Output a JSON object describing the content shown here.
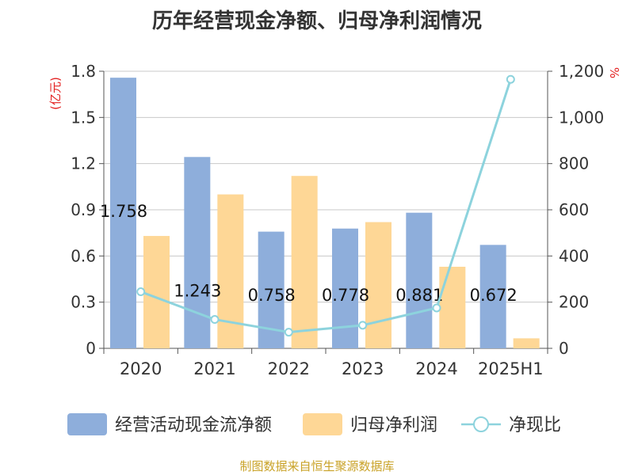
{
  "title": "历年经营现金净额、归母净利润情况",
  "footer": "制图数据来自恒生聚源数据库",
  "colors": {
    "cash": "#8eaedb",
    "profit": "#fed796",
    "ratio": "#8dd3dd",
    "unit": "#e32020"
  },
  "chart_data": {
    "type": "bar",
    "categories": [
      "2020",
      "2021",
      "2022",
      "2023",
      "2024",
      "2025H1"
    ],
    "ylabel_left": "(亿元)",
    "ylabel_right": "%",
    "ylim_left": [
      0,
      1.8
    ],
    "ylim_right": [
      0,
      1200
    ],
    "yticks_left": [
      "0",
      "0.3",
      "0.6",
      "0.9",
      "1.2",
      "1.5",
      "1.8"
    ],
    "yticks_right": [
      "0",
      "200",
      "400",
      "600",
      "800",
      "1,000",
      "1,200"
    ],
    "grid": true,
    "legend": "bottom",
    "series": [
      {
        "name": "经营活动现金流净额",
        "type": "bar",
        "axis": "left",
        "values": [
          1.758,
          1.243,
          0.758,
          0.778,
          0.881,
          0.672
        ],
        "labels": [
          "1.758",
          "1.243",
          "0.758",
          "0.778",
          "0.881",
          "0.672"
        ]
      },
      {
        "name": "归母净利润",
        "type": "bar",
        "axis": "left",
        "values": [
          0.73,
          1.0,
          1.12,
          0.82,
          0.53,
          0.065
        ]
      },
      {
        "name": "净现比",
        "type": "line",
        "axis": "right",
        "values": [
          245,
          125,
          70,
          100,
          175,
          1165
        ]
      }
    ]
  }
}
